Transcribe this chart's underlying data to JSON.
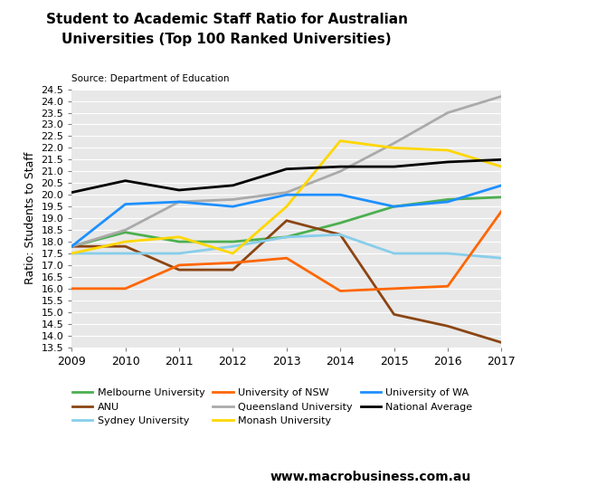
{
  "title_line1": "Student to Academic Staff Ratio for Australian",
  "title_line2": "Universities (Top 100 Ranked Universities)",
  "source": "Source: Department of Education",
  "ylabel": "Ratio: Students to Staff",
  "years": [
    2009,
    2010,
    2011,
    2012,
    2013,
    2014,
    2015,
    2016,
    2017
  ],
  "series": [
    {
      "name": "Melbourne University",
      "color": "#4CAF50",
      "values": [
        17.8,
        18.4,
        18.0,
        18.0,
        18.2,
        18.8,
        19.5,
        19.8,
        19.9
      ]
    },
    {
      "name": "ANU",
      "color": "#8B4513",
      "values": [
        17.8,
        17.8,
        16.8,
        16.8,
        18.9,
        18.3,
        14.9,
        14.4,
        13.7
      ]
    },
    {
      "name": "Sydney University",
      "color": "#87CEEB",
      "values": [
        17.5,
        17.5,
        17.5,
        17.8,
        18.2,
        18.3,
        17.5,
        17.5,
        17.3
      ]
    },
    {
      "name": "University of NSW",
      "color": "#FF6600",
      "values": [
        16.0,
        16.0,
        17.0,
        17.1,
        17.3,
        15.9,
        16.0,
        16.1,
        19.3
      ]
    },
    {
      "name": "Queensland University",
      "color": "#AAAAAA",
      "values": [
        17.8,
        18.5,
        19.7,
        19.8,
        20.1,
        21.0,
        22.2,
        23.5,
        24.2
      ]
    },
    {
      "name": "Monash University",
      "color": "#FFD700",
      "values": [
        17.5,
        18.0,
        18.2,
        17.5,
        19.5,
        22.3,
        22.0,
        21.9,
        21.2
      ]
    },
    {
      "name": "University of WA",
      "color": "#1E90FF",
      "values": [
        17.8,
        19.6,
        19.7,
        19.5,
        20.0,
        20.0,
        19.5,
        19.7,
        20.4
      ]
    },
    {
      "name": "National Average",
      "color": "#000000",
      "values": [
        20.1,
        20.6,
        20.2,
        20.4,
        21.1,
        21.2,
        21.2,
        21.4,
        21.5
      ]
    }
  ],
  "legend_order": [
    "Melbourne University",
    "ANU",
    "Sydney University",
    "University of NSW",
    "Queensland University",
    "Monash University",
    "University of WA",
    "National Average"
  ],
  "ylim": [
    13.5,
    24.5
  ],
  "yticks": [
    13.5,
    14.0,
    14.5,
    15.0,
    15.5,
    16.0,
    16.5,
    17.0,
    17.5,
    18.0,
    18.5,
    19.0,
    19.5,
    20.0,
    20.5,
    21.0,
    21.5,
    22.0,
    22.5,
    23.0,
    23.5,
    24.0,
    24.5
  ],
  "bg_color": "#E8E8E8",
  "macro_box_color": "#CC0000",
  "website": "www.macrobusiness.com.au",
  "linewidth": 2.0
}
